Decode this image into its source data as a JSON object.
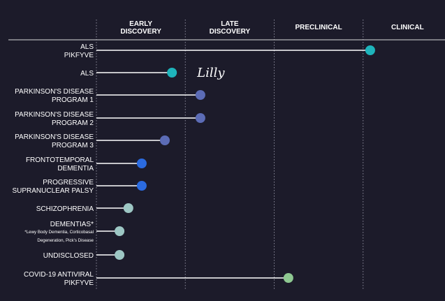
{
  "chart_data": {
    "type": "pipeline",
    "stages": [
      {
        "line1": "EARLY",
        "line2": "DISCOVERY"
      },
      {
        "line1": "LATE",
        "line2": "DISCOVERY"
      },
      {
        "line1": "PRECLINICAL",
        "line2": ""
      },
      {
        "line1": "CLINICAL",
        "line2": ""
      }
    ],
    "programs": [
      {
        "line1": "ALS",
        "line2": "PIKFYVE",
        "note1": "",
        "note2": "",
        "progress": 3.08,
        "color": "#1eb4bb",
        "partner": ""
      },
      {
        "line1": "ALS",
        "line2": "",
        "note1": "",
        "note2": "",
        "progress": 0.85,
        "color": "#1eb4bb",
        "partner": "Lilly"
      },
      {
        "line1": "PARKINSON'S DISEASE",
        "line2": "PROGRAM 1",
        "note1": "",
        "note2": "",
        "progress": 1.17,
        "color": "#5c6cb6",
        "partner": ""
      },
      {
        "line1": "PARKINSON'S DISEASE",
        "line2": "PROGRAM 2",
        "note1": "",
        "note2": "",
        "progress": 1.17,
        "color": "#5c6cb6",
        "partner": ""
      },
      {
        "line1": "PARKINSON'S DISEASE",
        "line2": "PROGRAM 3",
        "note1": "",
        "note2": "",
        "progress": 0.77,
        "color": "#5c6cb6",
        "partner": ""
      },
      {
        "line1": "FRONTOTEMPORAL",
        "line2": "DEMENTIA",
        "note1": "",
        "note2": "",
        "progress": 0.51,
        "color": "#2b6be0",
        "partner": ""
      },
      {
        "line1": "PROGRESSIVE",
        "line2": "SUPRANUCLEAR PALSY",
        "note1": "",
        "note2": "",
        "progress": 0.51,
        "color": "#2b6be0",
        "partner": ""
      },
      {
        "line1": "SCHIZOPHRENIA",
        "line2": "",
        "note1": "",
        "note2": "",
        "progress": 0.36,
        "color": "#9dc7c4",
        "partner": ""
      },
      {
        "line1": "DEMENTIAS*",
        "line2": "",
        "note1": "*Lewy Body Dementia, Corticobasal",
        "note2": "Degeneration, Pick's Disease",
        "progress": 0.26,
        "color": "#9dc7c4",
        "partner": ""
      },
      {
        "line1": "UNDISCLOSED",
        "line2": "",
        "note1": "",
        "note2": "",
        "progress": 0.26,
        "color": "#9dc7c4",
        "partner": ""
      },
      {
        "line1": "COVID-19 ANTIVIRAL",
        "line2": "PIKFYVE",
        "note1": "",
        "note2": "",
        "progress": 2.16,
        "color": "#8ec891",
        "partner": ""
      }
    ]
  }
}
